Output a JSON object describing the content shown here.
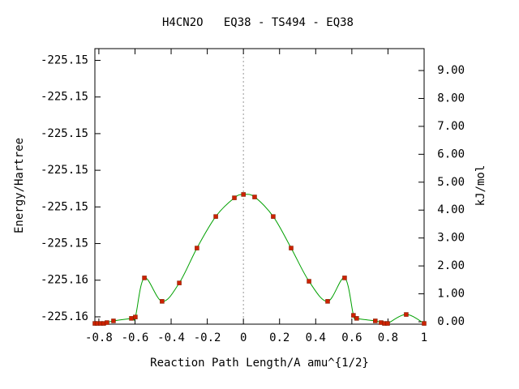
{
  "chart_data": {
    "type": "line",
    "title": "H4CN2O   EQ38 - TS494 - EQ38",
    "x_label": "Reaction Path Length/A amu^{1/2}",
    "y_label": "Energy/Hartree",
    "y2_label": "kJ/mol",
    "xlim": [
      -0.822,
      1.0
    ],
    "xticks": [
      -0.8,
      -0.6,
      -0.4,
      -0.2,
      0,
      0.2,
      0.4,
      0.6,
      0.8,
      1
    ],
    "ylim": [
      -225.1561,
      -225.15234
    ],
    "yticks": [
      {
        "value": -225.156,
        "label": "-225.16"
      },
      {
        "value": -225.1555,
        "label": "-225.16"
      },
      {
        "value": -225.155,
        "label": "-225.15"
      },
      {
        "value": -225.1545,
        "label": "-225.15"
      },
      {
        "value": -225.154,
        "label": "-225.15"
      },
      {
        "value": -225.1535,
        "label": "-225.15"
      },
      {
        "value": -225.153,
        "label": "-225.15"
      },
      {
        "value": -225.1525,
        "label": "-225.15"
      }
    ],
    "y2lim": [
      -0.087,
      9.785
    ],
    "y2ticks": [
      {
        "value": 0,
        "label": "0.00"
      },
      {
        "value": 1,
        "label": "1.00"
      },
      {
        "value": 2,
        "label": "2.00"
      },
      {
        "value": 3,
        "label": "3.00"
      },
      {
        "value": 4,
        "label": "4.00"
      },
      {
        "value": 5,
        "label": "5.00"
      },
      {
        "value": 6,
        "label": "6.00"
      },
      {
        "value": 7,
        "label": "7.00"
      },
      {
        "value": 8,
        "label": "8.00"
      },
      {
        "value": 9,
        "label": "9.00"
      }
    ],
    "series": [
      {
        "color": "#00a000",
        "marker_color": "#cc2200",
        "axis": "y2",
        "x": [
          -0.822,
          -0.809,
          -0.791,
          -0.773,
          -0.755,
          -0.719,
          -0.62,
          -0.598,
          -0.548,
          -0.45,
          -0.355,
          -0.257,
          -0.153,
          -0.05,
          0.0,
          0.062,
          0.165,
          0.264,
          0.363,
          0.466,
          0.56,
          0.609,
          0.627,
          0.73,
          0.762,
          0.78,
          0.798,
          0.901,
          1.0
        ],
        "values": [
          -0.06,
          -0.06,
          -0.06,
          -0.06,
          -0.03,
          0.03,
          0.12,
          0.17,
          1.57,
          0.73,
          1.39,
          2.64,
          3.77,
          4.44,
          4.56,
          4.47,
          3.77,
          2.64,
          1.45,
          0.73,
          1.57,
          0.23,
          0.12,
          0.03,
          -0.03,
          -0.06,
          -0.06,
          0.26,
          -0.06
        ]
      }
    ]
  }
}
